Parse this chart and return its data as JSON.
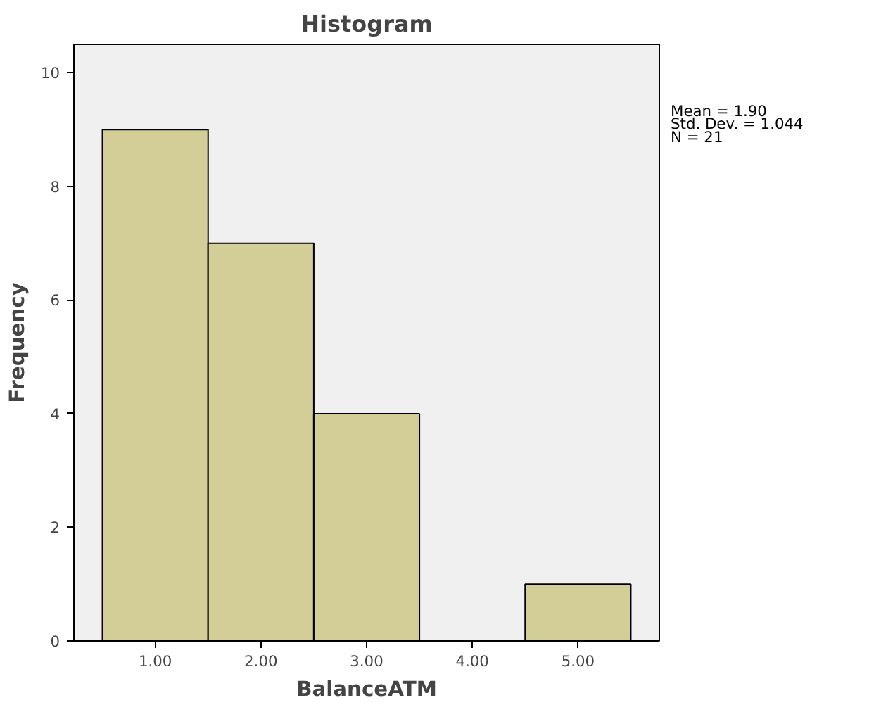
{
  "chart_data": {
    "type": "histogram",
    "title": "Histogram",
    "xlabel": "BalanceATM",
    "ylabel": "Frequency",
    "bins": [
      0.5,
      1.5,
      2.5,
      3.5,
      4.5,
      5.5
    ],
    "values": [
      9,
      7,
      4,
      0,
      1
    ],
    "color": "#d3ce97",
    "xlim": [
      0.23,
      5.77
    ],
    "xticks": [
      {
        "value": 1,
        "label": "1.00"
      },
      {
        "value": 2,
        "label": "2.00"
      },
      {
        "value": 3,
        "label": "3.00"
      },
      {
        "value": 4,
        "label": "4.00"
      },
      {
        "value": 5,
        "label": "5.00"
      }
    ],
    "ylim": [
      0,
      10.5
    ],
    "yticks": [
      0,
      2,
      4,
      6,
      8,
      10
    ],
    "grid": false,
    "annotations": [
      "Mean = 1.90",
      "Std. Dev. = 1.044",
      "N = 21"
    ]
  }
}
